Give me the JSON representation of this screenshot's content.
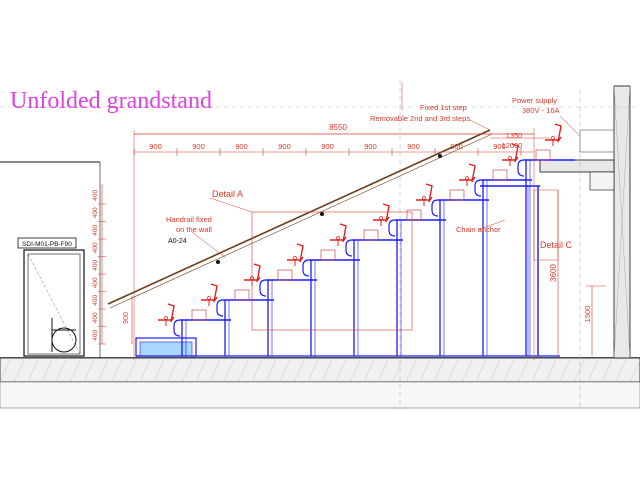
{
  "title": "Unfolded grandstand",
  "annotations": {
    "fixed_step": "Fixed 1st step",
    "removable_steps": "Removable 2nd and 3rd steps",
    "power_supply_1": "Power supply",
    "power_supply_2": "380V - 16A",
    "detail_a": "Detail A",
    "handrail_1": "Handrail fixed",
    "handrail_2": "on the wall",
    "drawing_code": "A0-24",
    "chain_anchor": "Chain anchor",
    "detail_c": "Detail C",
    "door_label": "SDI-M01-PB-F90"
  },
  "dimensions": {
    "total_length": "8550",
    "top_span": "1350",
    "top_landing": "12000",
    "height": "3600",
    "right_height": "1500",
    "rail_height": "900",
    "step_widths": [
      "900",
      "900",
      "900",
      "900",
      "900",
      "900",
      "900",
      "900",
      "900"
    ],
    "riser_heights": [
      "400",
      "400",
      "400",
      "400",
      "400",
      "400",
      "400",
      "400",
      "400"
    ]
  },
  "colors": {
    "structure": "#1a1aff",
    "seats": "#e02020",
    "dimension": "#d83a2a",
    "title": "#e040e0",
    "outline": "#111111"
  }
}
